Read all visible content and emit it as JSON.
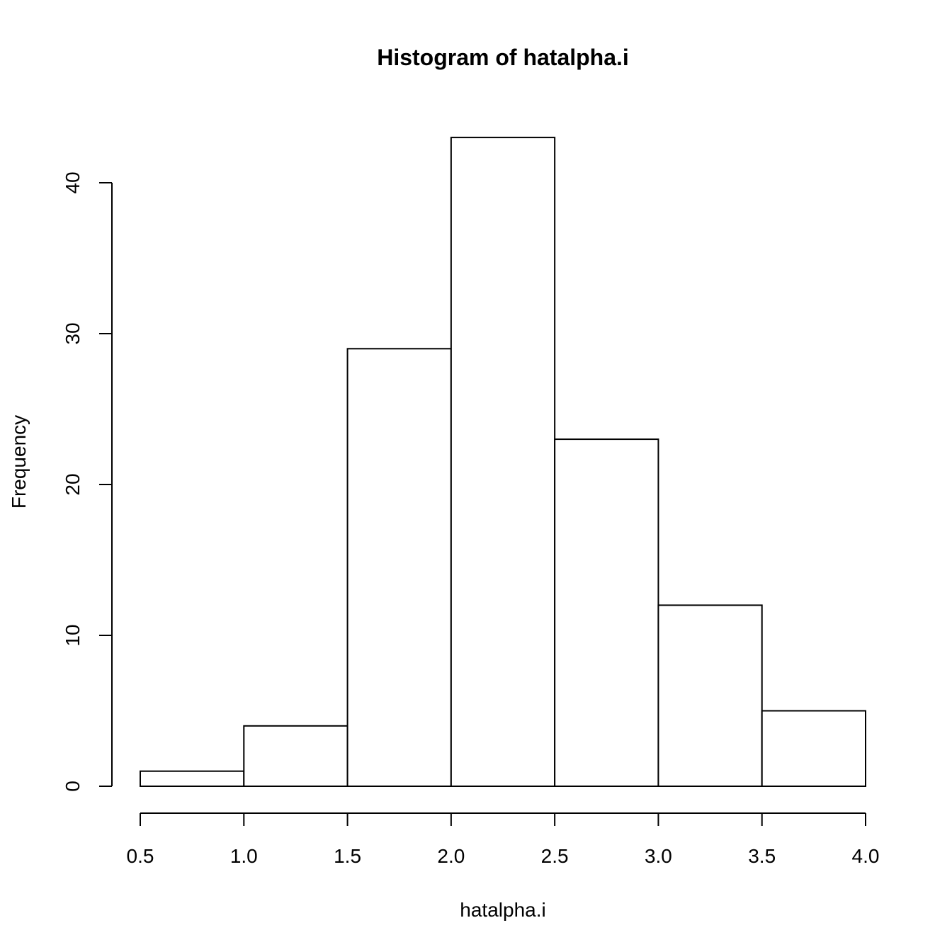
{
  "chart_data": {
    "type": "bar",
    "title": "Histogram of hatalpha.i",
    "xlabel": "hatalpha.i",
    "ylabel": "Frequency",
    "bins": [
      {
        "from": 0.5,
        "to": 1.0,
        "count": 1
      },
      {
        "from": 1.0,
        "to": 1.5,
        "count": 4
      },
      {
        "from": 1.5,
        "to": 2.0,
        "count": 29
      },
      {
        "from": 2.0,
        "to": 2.5,
        "count": 43
      },
      {
        "from": 2.5,
        "to": 3.0,
        "count": 23
      },
      {
        "from": 3.0,
        "to": 3.5,
        "count": 12
      },
      {
        "from": 3.5,
        "to": 4.0,
        "count": 5
      }
    ],
    "x_ticks": [
      "0.5",
      "1.0",
      "1.5",
      "2.0",
      "2.5",
      "3.0",
      "3.5",
      "4.0"
    ],
    "y_ticks": [
      "0",
      "10",
      "20",
      "30",
      "40"
    ],
    "xlim": [
      0.5,
      4.0
    ],
    "ylim": [
      0,
      40
    ],
    "grid": false,
    "colors": {
      "bar_fill": "#ffffff",
      "bar_stroke": "#000000"
    }
  }
}
